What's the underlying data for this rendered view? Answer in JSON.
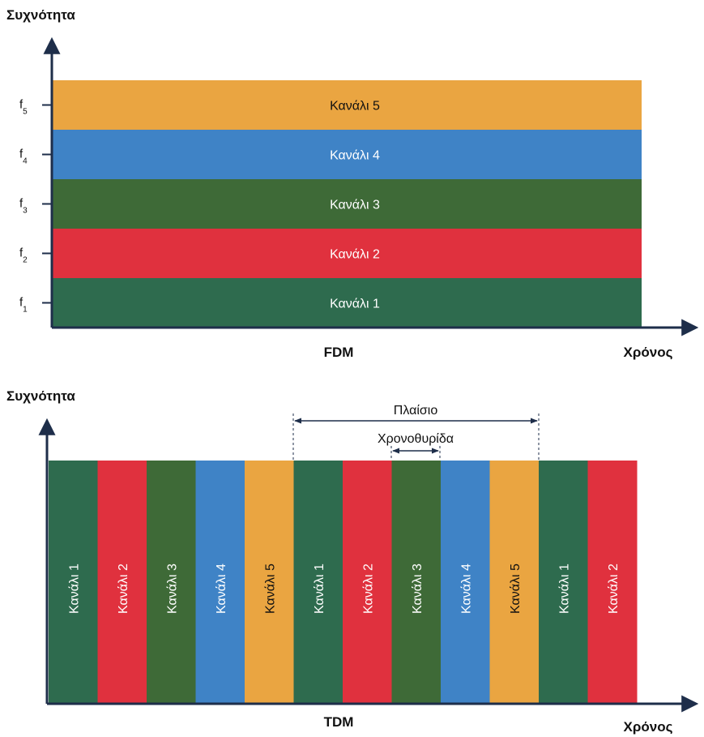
{
  "colors": {
    "channel_1": "#2e6b4e",
    "channel_2": "#e0313e",
    "channel_3": "#3e6a37",
    "channel_4": "#3f83c6",
    "channel_5": "#eaa541",
    "axis": "#1e2e4a"
  },
  "fdm": {
    "y_axis_label": "Συχνότητα",
    "x_axis_label": "Χρόνος",
    "caption": "FDM",
    "tick_letter": "f",
    "ticks": [
      "5",
      "4",
      "3",
      "2",
      "1"
    ],
    "bands": [
      {
        "label": "Κανάλι 5",
        "color": "#eaa541"
      },
      {
        "label": "Κανάλι 4",
        "color": "#3f83c6"
      },
      {
        "label": "Κανάλι 3",
        "color": "#3e6a37"
      },
      {
        "label": "Κανάλι 2",
        "color": "#e0313e"
      },
      {
        "label": "Κανάλι 1",
        "color": "#2e6b4e"
      }
    ]
  },
  "tdm": {
    "y_axis_label": "Συχνότητα",
    "x_axis_label": "Χρόνος",
    "caption": "TDM",
    "frame_label": "Πλαίσιο",
    "slot_label": "Χρονοθυρίδα",
    "slots": [
      {
        "label": "Κανάλι 1",
        "color": "#2e6b4e"
      },
      {
        "label": "Κανάλι 2",
        "color": "#e0313e"
      },
      {
        "label": "Κανάλι 3",
        "color": "#3e6a37"
      },
      {
        "label": "Κανάλι 4",
        "color": "#3f83c6"
      },
      {
        "label": "Κανάλι 5",
        "color": "#eaa541"
      },
      {
        "label": "Κανάλι 1",
        "color": "#2e6b4e"
      },
      {
        "label": "Κανάλι 2",
        "color": "#e0313e"
      },
      {
        "label": "Κανάλι 3",
        "color": "#3e6a37"
      },
      {
        "label": "Κανάλι 4",
        "color": "#3f83c6"
      },
      {
        "label": "Κανάλι 5",
        "color": "#eaa541"
      },
      {
        "label": "Κανάλι 1",
        "color": "#2e6b4e"
      },
      {
        "label": "Κανάλι 2",
        "color": "#e0313e"
      }
    ]
  }
}
